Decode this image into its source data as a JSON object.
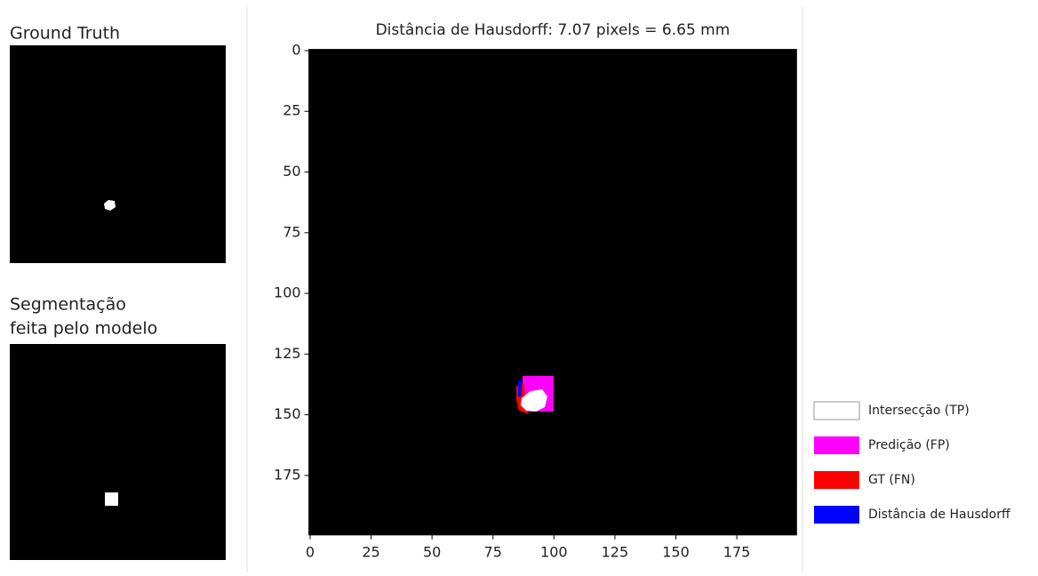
{
  "panels": [
    {
      "title_lines": [
        "Ground Truth"
      ]
    },
    {
      "title_lines": [
        "Segmentação",
        "feita pelo modelo"
      ]
    }
  ],
  "chart_data": {
    "type": "image",
    "title": "Distância de Hausdorff: 7.07 pixels = 6.65 mm",
    "xlim": [
      -0.5,
      199.5
    ],
    "ylim": [
      199.5,
      -0.5
    ],
    "xticks": [
      0,
      25,
      50,
      75,
      100,
      125,
      150,
      175
    ],
    "yticks": [
      0,
      25,
      50,
      75,
      100,
      125,
      150,
      175
    ],
    "background": "#000000",
    "legend": [
      {
        "name": "Intersecção (TP)",
        "color": "#ffffff"
      },
      {
        "name": "Predição (FP)",
        "color": "#ff00ff"
      },
      {
        "name": "GT (FN)",
        "color": "#ff0000"
      },
      {
        "name": "Distância de Hausdorff",
        "color": "#0000ff"
      }
    ]
  }
}
